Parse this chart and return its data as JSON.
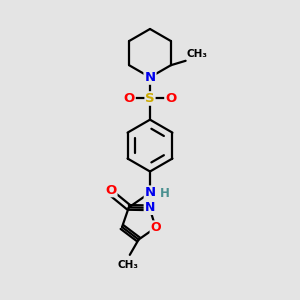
{
  "bg_color": "#e4e4e4",
  "atom_colors": {
    "C": "#000000",
    "N": "#0000ee",
    "O": "#ff0000",
    "S": "#ccaa00",
    "H": "#4a9090"
  },
  "bond_color": "#000000",
  "bond_width": 1.6,
  "figsize": [
    3.0,
    3.0
  ],
  "dpi": 100
}
